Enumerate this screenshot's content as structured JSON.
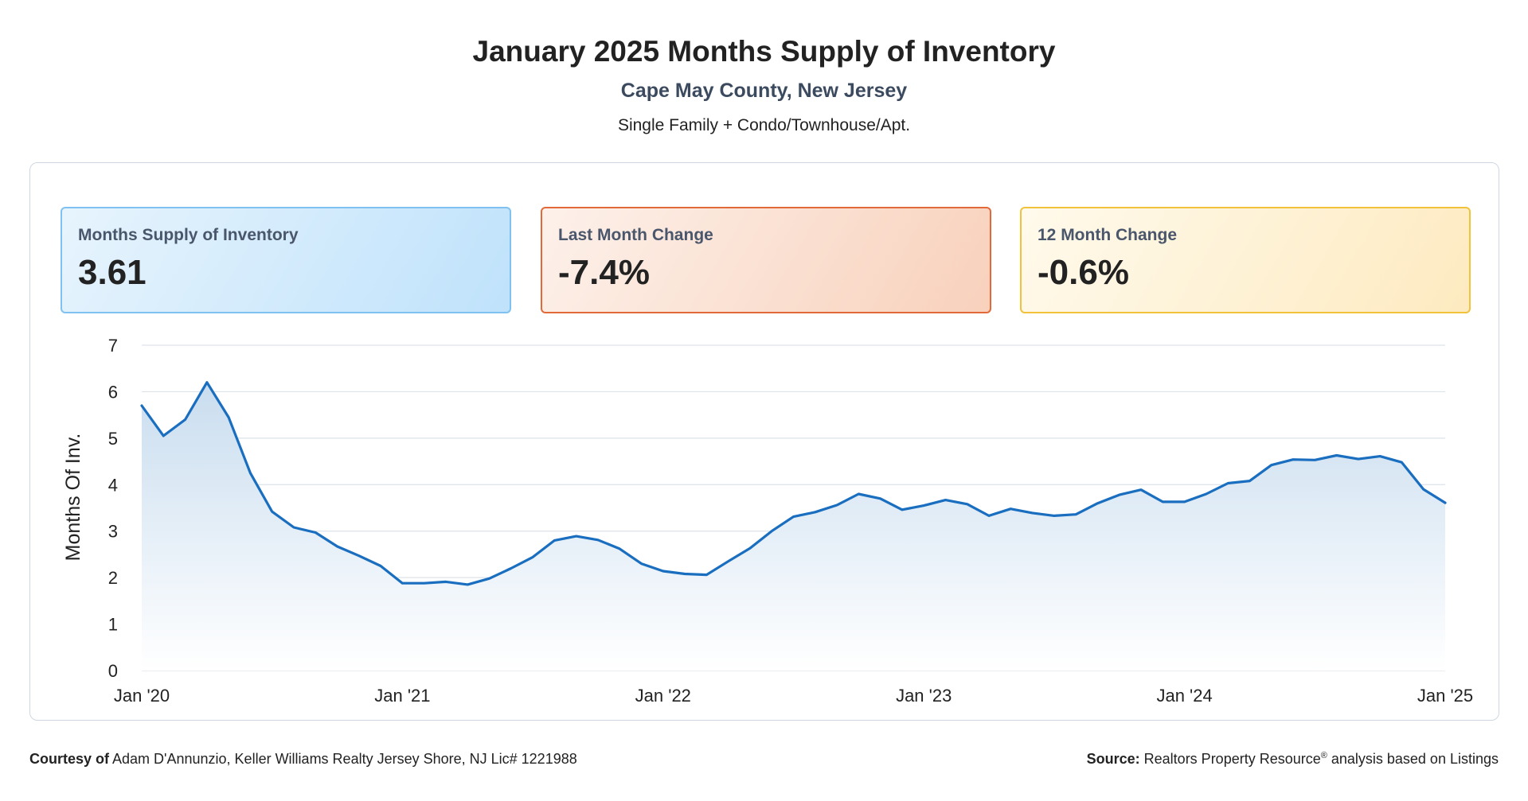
{
  "header": {
    "title": "January 2025 Months Supply of Inventory",
    "subtitle": "Cape May County, New Jersey",
    "property_type": "Single Family + Condo/Townhouse/Apt."
  },
  "stats": {
    "msi": {
      "label": "Months Supply of Inventory",
      "value": "3.61"
    },
    "last_month": {
      "label": "Last Month Change",
      "value": "-7.4%"
    },
    "twelve_month": {
      "label": "12 Month Change",
      "value": "-0.6%"
    }
  },
  "footer": {
    "courtesy_label": "Courtesy of",
    "courtesy_text": "Adam D'Annunzio, Keller Williams Realty Jersey Shore, NJ Lic# 1221988",
    "source_label": "Source:",
    "source_text_pre": "Realtors Property Resource",
    "source_mark": "®",
    "source_text_post": " analysis based on Listings"
  },
  "colors": {
    "line": "#1a6ebf",
    "area_top": "#c9ddef",
    "area_bottom": "#ffffff",
    "grid": "#dde3ea"
  },
  "chart_data": {
    "type": "area",
    "title": "",
    "xlabel": "",
    "ylabel": "Months Of Inv.",
    "ylim": [
      0,
      7
    ],
    "yticks": [
      0,
      1,
      2,
      3,
      4,
      5,
      6,
      7
    ],
    "xtick_labels": [
      "Jan '20",
      "Jan '21",
      "Jan '22",
      "Jan '23",
      "Jan '24",
      "Jan '25"
    ],
    "grid": true,
    "legend": "none",
    "series": [
      {
        "values": [
          5.7,
          5.05,
          5.4,
          6.2,
          5.45,
          4.25,
          3.42,
          3.08,
          2.97,
          2.67,
          2.47,
          2.25,
          1.88,
          1.88,
          1.91,
          1.85,
          1.98,
          2.2,
          2.44,
          2.8,
          2.89,
          2.81,
          2.62,
          2.3,
          2.14,
          2.08,
          2.06,
          2.35,
          2.63,
          3.0,
          3.31,
          3.41,
          3.56,
          3.8,
          3.7,
          3.46,
          3.55,
          3.67,
          3.58,
          3.33,
          3.48,
          3.39,
          3.33,
          3.36,
          3.6,
          3.78,
          3.89,
          3.63,
          3.63,
          3.8,
          4.03,
          4.08,
          4.42,
          4.54,
          4.53,
          4.63,
          4.55,
          4.61,
          4.48,
          3.9,
          3.61
        ]
      }
    ]
  }
}
